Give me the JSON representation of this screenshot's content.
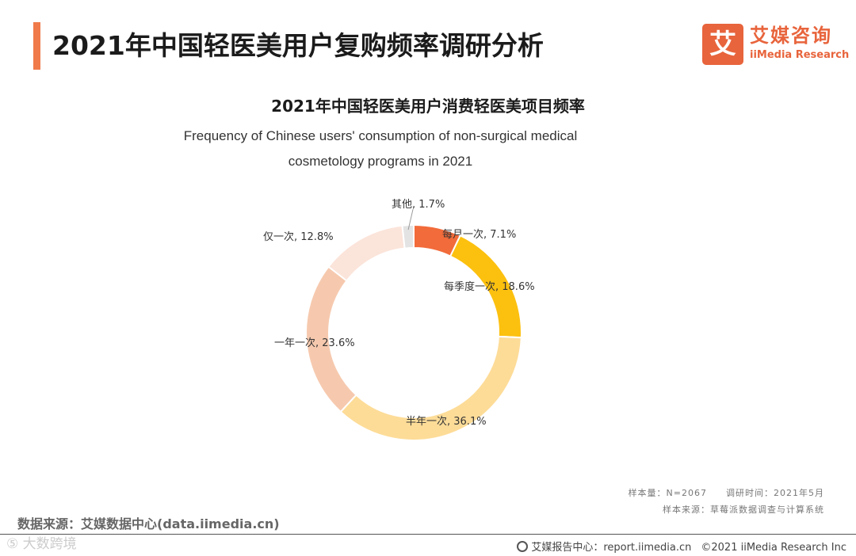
{
  "header": {
    "title": "2021年中国轻医美用户复购频率调研分析"
  },
  "logo": {
    "mark": "艾",
    "name_cn": "艾媒咨询",
    "name_en": "iiMedia Research"
  },
  "chart_data": {
    "type": "pie",
    "variant": "donut",
    "title": "2021年中国轻医美用户消费轻医美项目频率",
    "subtitle_line1": "Frequency of Chinese users' consumption of non-surgical medical",
    "subtitle_line2": "cosmetology programs in 2021",
    "unit": "%",
    "slices": [
      {
        "label": "每月一次",
        "value": 7.1,
        "display": "每月一次, 7.1%",
        "color": "#f26b3a"
      },
      {
        "label": "每季度一次",
        "value": 18.6,
        "display": "每季度一次, 18.6%",
        "color": "#fcc00f"
      },
      {
        "label": "半年一次",
        "value": 36.1,
        "display": "半年一次, 36.1%",
        "color": "#fddc98"
      },
      {
        "label": "一年一次",
        "value": 23.6,
        "display": "一年一次, 23.6%",
        "color": "#f6c9ae"
      },
      {
        "label": "仅一次",
        "value": 12.8,
        "display": "仅一次, 12.8%",
        "color": "#fbe4da"
      },
      {
        "label": "其他",
        "value": 1.7,
        "display": "其他, 1.7%",
        "color": "#e3e3e3"
      }
    ]
  },
  "notes": {
    "sample": "样本量：N=2067　　调研时间：2021年5月",
    "sample_source": "样本来源：草莓派数据调查与计算系统"
  },
  "source": {
    "text": "数据来源：艾媒数据中心(data.iimedia.cn)"
  },
  "footer": {
    "watermark": "⑤ 大数跨境",
    "report_center": "艾媒报告中心：report.iimedia.cn",
    "copyright": "©2021  iiMedia Research  Inc"
  }
}
